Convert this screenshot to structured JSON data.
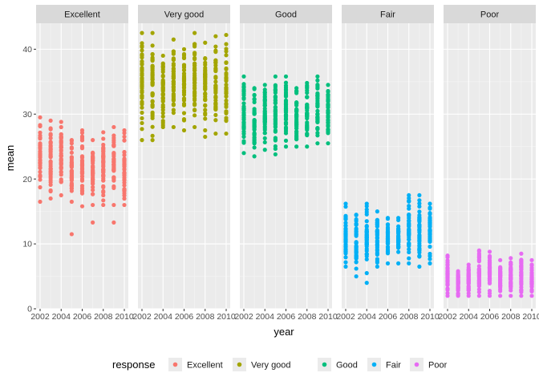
{
  "chart_data": {
    "type": "scatter",
    "facet_by": "response",
    "xlabel": "year",
    "ylabel": "mean",
    "xlim": [
      2002,
      2010
    ],
    "ylim": [
      0,
      44
    ],
    "x_ticks": [
      2002,
      2004,
      2006,
      2008,
      2010
    ],
    "x_tick_labels": [
      "2002",
      "2004",
      "2006",
      "2008",
      "2010"
    ],
    "y_ticks": [
      0,
      10,
      20,
      30,
      40
    ],
    "y_tick_labels": [
      "0",
      "10",
      "20",
      "30",
      "40"
    ],
    "grid": true,
    "legend": {
      "title": "response",
      "position": "bottom"
    },
    "facets": [
      {
        "name": "Excellent",
        "color": "#F8766D",
        "points_per_year": 45,
        "years": [
          {
            "year": 2002,
            "min": 16.5,
            "max": 29.5
          },
          {
            "year": 2003,
            "min": 17.0,
            "max": 29.0
          },
          {
            "year": 2004,
            "min": 17.5,
            "max": 28.8
          },
          {
            "year": 2005,
            "min": 16.5,
            "max": 26.0
          },
          {
            "year": 2006,
            "min": 15.8,
            "max": 27.5
          },
          {
            "year": 2007,
            "min": 16.0,
            "max": 26.0
          },
          {
            "year": 2008,
            "min": 16.0,
            "max": 27.2
          },
          {
            "year": 2009,
            "min": 16.0,
            "max": 28.0
          },
          {
            "year": 2010,
            "min": 16.0,
            "max": 27.5
          }
        ],
        "outliers": [
          {
            "year": 2005,
            "y": 11.5
          },
          {
            "year": 2007,
            "y": 13.3
          },
          {
            "year": 2009,
            "y": 13.3
          }
        ]
      },
      {
        "name": "Very good",
        "color": "#A3A500",
        "points_per_year": 45,
        "years": [
          {
            "year": 2002,
            "min": 26.0,
            "max": 42.5
          },
          {
            "year": 2003,
            "min": 26.0,
            "max": 42.5
          },
          {
            "year": 2004,
            "min": 28.0,
            "max": 39.0
          },
          {
            "year": 2005,
            "min": 28.0,
            "max": 41.5
          },
          {
            "year": 2006,
            "min": 27.5,
            "max": 40.0
          },
          {
            "year": 2007,
            "min": 28.0,
            "max": 42.5
          },
          {
            "year": 2008,
            "min": 27.5,
            "max": 41.0
          },
          {
            "year": 2009,
            "min": 27.0,
            "max": 42.0
          },
          {
            "year": 2010,
            "min": 27.0,
            "max": 42.2
          }
        ],
        "outliers": [
          {
            "year": 2008,
            "y": 26.5
          }
        ]
      },
      {
        "name": "Good",
        "color": "#00BF7D",
        "points_per_year": 45,
        "years": [
          {
            "year": 2002,
            "min": 24.0,
            "max": 35.8
          },
          {
            "year": 2003,
            "min": 23.5,
            "max": 34.0
          },
          {
            "year": 2004,
            "min": 24.5,
            "max": 34.5
          },
          {
            "year": 2005,
            "min": 23.8,
            "max": 35.8
          },
          {
            "year": 2006,
            "min": 25.0,
            "max": 35.8
          },
          {
            "year": 2007,
            "min": 25.0,
            "max": 34.0
          },
          {
            "year": 2008,
            "min": 25.0,
            "max": 34.8
          },
          {
            "year": 2009,
            "min": 25.5,
            "max": 35.8
          },
          {
            "year": 2010,
            "min": 25.5,
            "max": 34.5
          }
        ],
        "outliers": []
      },
      {
        "name": "Fair",
        "color": "#00B0F6",
        "points_per_year": 45,
        "years": [
          {
            "year": 2002,
            "min": 6.5,
            "max": 16.2
          },
          {
            "year": 2003,
            "min": 5.0,
            "max": 14.5
          },
          {
            "year": 2004,
            "min": 5.5,
            "max": 16.2
          },
          {
            "year": 2005,
            "min": 6.5,
            "max": 15.0
          },
          {
            "year": 2006,
            "min": 7.0,
            "max": 14.0
          },
          {
            "year": 2007,
            "min": 7.0,
            "max": 14.0
          },
          {
            "year": 2008,
            "min": 7.0,
            "max": 17.5
          },
          {
            "year": 2009,
            "min": 6.5,
            "max": 17.5
          },
          {
            "year": 2010,
            "min": 7.0,
            "max": 16.2
          }
        ],
        "outliers": [
          {
            "year": 2004,
            "y": 4.0
          }
        ]
      },
      {
        "name": "Poor",
        "color": "#E76BF3",
        "points_per_year": 45,
        "years": [
          {
            "year": 2002,
            "min": 2.0,
            "max": 8.2
          },
          {
            "year": 2003,
            "min": 2.0,
            "max": 5.8
          },
          {
            "year": 2004,
            "min": 2.0,
            "max": 6.8
          },
          {
            "year": 2005,
            "min": 2.0,
            "max": 9.0
          },
          {
            "year": 2006,
            "min": 2.0,
            "max": 8.8
          },
          {
            "year": 2007,
            "min": 2.0,
            "max": 7.5
          },
          {
            "year": 2008,
            "min": 2.0,
            "max": 7.8
          },
          {
            "year": 2009,
            "min": 2.0,
            "max": 8.5
          },
          {
            "year": 2010,
            "min": 2.0,
            "max": 7.5
          }
        ],
        "outliers": []
      }
    ]
  }
}
